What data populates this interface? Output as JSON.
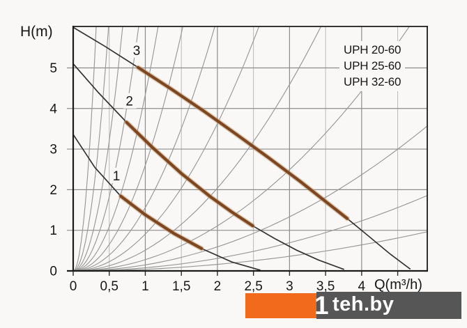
{
  "chart_data": {
    "type": "line",
    "title": "",
    "xlabel": "Q(m³/h)",
    "ylabel": "H(m)",
    "xlim": [
      0,
      4.91
    ],
    "ylim": [
      0,
      6.02
    ],
    "grid": true,
    "legend_position": "top-right",
    "legend": [
      "UPH 20-60",
      "UPH 25-60",
      "UPH 32-60"
    ],
    "x_ticks": [
      {
        "v": 0,
        "label": "0"
      },
      {
        "v": 0.5,
        "label": "0,5"
      },
      {
        "v": 1,
        "label": "1"
      },
      {
        "v": 1.5,
        "label": "1,5"
      },
      {
        "v": 2,
        "label": "2"
      },
      {
        "v": 2.5,
        "label": "2,5"
      },
      {
        "v": 3,
        "label": "3"
      },
      {
        "v": 3.5,
        "label": "3,5"
      },
      {
        "v": 4,
        "label": "4"
      },
      {
        "v": 4.5,
        "label": ""
      }
    ],
    "y_ticks": [
      {
        "v": 0,
        "label": "0"
      },
      {
        "v": 1,
        "label": "1"
      },
      {
        "v": 2,
        "label": "2"
      },
      {
        "v": 3,
        "label": "3"
      },
      {
        "v": 4,
        "label": "4"
      },
      {
        "v": 5,
        "label": "5"
      }
    ],
    "grid_x_major": [
      1,
      2,
      3,
      4
    ],
    "grid_x_minor": [
      0.5,
      1.5,
      2.5,
      3.5,
      4.5
    ],
    "grid_y_major": [
      1,
      2,
      3,
      4,
      5
    ],
    "pump_curves": [
      {
        "label": "1",
        "label_at": {
          "q": 0.6,
          "h": 2.35
        },
        "points": [
          [
            0,
            3.36
          ],
          [
            0.3,
            2.55
          ],
          [
            0.66,
            1.84
          ],
          [
            1.0,
            1.38
          ],
          [
            1.4,
            0.92
          ],
          [
            1.78,
            0.55
          ],
          [
            2.2,
            0.22
          ],
          [
            2.59,
            0.02
          ]
        ],
        "highlight_q_range": [
          0.66,
          1.78
        ]
      },
      {
        "label": "2",
        "label_at": {
          "q": 0.78,
          "h": 4.19
        },
        "points": [
          [
            0,
            5.1
          ],
          [
            0.35,
            4.39
          ],
          [
            0.74,
            3.66
          ],
          [
            1.1,
            3.04
          ],
          [
            1.5,
            2.4
          ],
          [
            1.9,
            1.83
          ],
          [
            2.2,
            1.45
          ],
          [
            2.49,
            1.11
          ],
          [
            2.8,
            0.79
          ],
          [
            3.1,
            0.51
          ],
          [
            3.4,
            0.27
          ],
          [
            3.75,
            0.04
          ]
        ],
        "highlight_q_range": [
          0.74,
          2.49
        ]
      },
      {
        "label": "3",
        "label_at": {
          "q": 0.88,
          "h": 5.44
        },
        "points": [
          [
            0,
            6.0
          ],
          [
            0.45,
            5.52
          ],
          [
            0.9,
            5.01
          ],
          [
            1.35,
            4.49
          ],
          [
            1.8,
            3.95
          ],
          [
            2.25,
            3.38
          ],
          [
            2.7,
            2.8
          ],
          [
            3.15,
            2.2
          ],
          [
            3.6,
            1.57
          ],
          [
            3.8,
            1.29
          ],
          [
            4.1,
            0.85
          ],
          [
            4.4,
            0.41
          ],
          [
            4.67,
            0.05
          ]
        ],
        "highlight_q_range": [
          0.9,
          3.8
        ]
      }
    ],
    "system_curves": {
      "model": "H = k * Q^2",
      "k_values": [
        59,
        25,
        12.8,
        7.3,
        4.34,
        2.6,
        1.56,
        0.907,
        0.51,
        0.277,
        0.148,
        0.077,
        0.04
      ]
    }
  },
  "watermark": {
    "logo_mark": "1",
    "logo_text": "teh.by"
  },
  "colors": {
    "background": "#f9f8f6",
    "axis": "#1a1a1a",
    "grid": "#8c8c8c",
    "grid_minor": "#b9b9b9",
    "tick": "#2a2a2a",
    "system_curve": "#979797",
    "pump_curve": "#333333",
    "highlight": "#7a431f",
    "highlight_halo": "#c59a6d",
    "text": "#161616",
    "watermark_orange": "#f26a1b",
    "watermark_gray": "#565656",
    "watermark_text": "#ffffff"
  }
}
